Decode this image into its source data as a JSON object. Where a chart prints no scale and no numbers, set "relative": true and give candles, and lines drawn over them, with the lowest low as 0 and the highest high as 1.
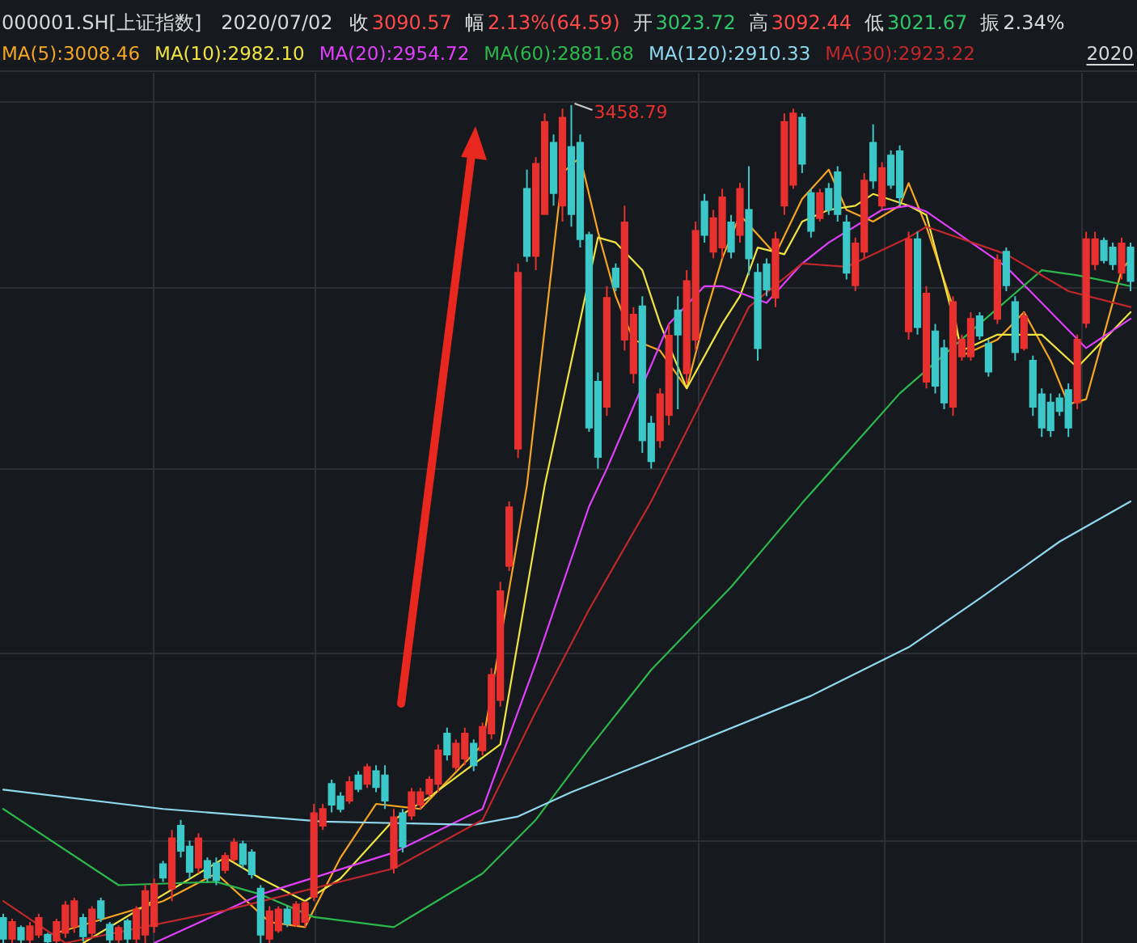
{
  "chart_data": {
    "type": "candlestick",
    "relative": true,
    "title": "000001.SH[上证指数]",
    "subtitle": "2020/07/02",
    "legend": "top left",
    "grid": true,
    "annotations": [
      "收",
      "3090.57",
      "幅",
      "2.13%(64.59)",
      "开",
      "3023.72",
      "高",
      "3092.44",
      "低",
      "3021.67",
      "振",
      "2.34%",
      "3458.79",
      "2020"
    ],
    "categories": [
      null,
      null,
      null,
      null,
      null,
      null,
      null,
      null,
      null,
      null,
      null,
      null,
      null,
      null,
      null,
      null,
      null,
      null,
      null,
      null,
      null,
      null,
      null,
      null,
      null,
      null,
      null,
      null,
      null,
      null,
      null,
      null,
      null,
      null,
      null,
      null,
      null,
      null,
      null,
      null,
      null,
      null,
      null,
      null,
      null,
      null,
      null,
      null,
      null,
      null,
      null,
      null,
      null,
      null,
      null,
      null,
      null,
      null,
      null,
      null,
      null,
      null,
      null,
      null,
      null,
      null,
      null,
      null,
      null,
      null,
      null,
      null,
      null,
      null,
      null,
      null,
      null,
      null,
      null,
      null,
      null,
      null,
      null,
      null,
      null,
      null,
      null,
      null,
      null,
      null,
      null,
      null,
      null,
      null,
      null,
      null,
      null,
      null,
      null,
      null,
      null,
      null,
      null,
      null,
      null,
      null,
      null,
      null,
      null,
      null,
      null,
      null,
      null,
      null,
      null,
      null,
      null,
      null,
      null,
      null,
      null,
      null,
      null,
      null,
      null,
      null,
      null,
      null
    ],
    "ohlc": [
      [
        0.03,
        0.035,
        0,
        0.005
      ],
      [
        0.005,
        0.029,
        0,
        0.025
      ],
      [
        0.018,
        0.021,
        0,
        0.004
      ],
      [
        0.004,
        0.025,
        0,
        0.02
      ],
      [
        0.01,
        0.035,
        0.006,
        0.03
      ],
      [
        0.01,
        0.012,
        0,
        0.002
      ],
      [
        0.003,
        0.029,
        0,
        0.025
      ],
      [
        0.012,
        0.05,
        0.006,
        0.045
      ],
      [
        0.02,
        0.054,
        0.012,
        0.05
      ],
      [
        0.03,
        0.035,
        0.002,
        0.008
      ],
      [
        0.012,
        0.044,
        0.006,
        0.04
      ],
      [
        0.05,
        0.054,
        0.025,
        0.03
      ],
      [
        0.022,
        0.025,
        0,
        0.004
      ],
      [
        0.004,
        0.021,
        0,
        0.018
      ],
      [
        0.026,
        0.029,
        0,
        0.005
      ],
      [
        0.005,
        0.044,
        0,
        0.04
      ],
      [
        0.01,
        0.069,
        0,
        0.062
      ],
      [
        0.02,
        0.077,
        0.012,
        0.07
      ],
      [
        0.094,
        0.098,
        0.073,
        0.078
      ],
      [
        0.065,
        0.135,
        0.05,
        0.125
      ],
      [
        0.14,
        0.147,
        0.102,
        0.11
      ],
      [
        0.115,
        0.122,
        0.077,
        0.085
      ],
      [
        0.09,
        0.131,
        0.083,
        0.125
      ],
      [
        0.098,
        0.102,
        0.073,
        0.078
      ],
      [
        0.095,
        0.102,
        0.069,
        0.075
      ],
      [
        0.087,
        0.108,
        0.083,
        0.104
      ],
      [
        0.1,
        0.125,
        0.097,
        0.12
      ],
      [
        0.118,
        0.122,
        0.089,
        0.094
      ],
      [
        0.108,
        0.112,
        0.077,
        0.082
      ],
      [
        0.065,
        0.069,
        0,
        0.01
      ],
      [
        0.005,
        0.044,
        0,
        0.038
      ],
      [
        0.015,
        0.044,
        0.012,
        0.04
      ],
      [
        0.04,
        0.044,
        0.019,
        0.023
      ],
      [
        0.022,
        0.05,
        0.019,
        0.046
      ],
      [
        0.025,
        0.05,
        0.019,
        0.048
      ],
      [
        0.055,
        0.166,
        0.05,
        0.155
      ],
      [
        0.14,
        0.166,
        0.135,
        0.16
      ],
      [
        0.19,
        0.195,
        0.156,
        0.165
      ],
      [
        0.175,
        0.18,
        0.156,
        0.16
      ],
      [
        0.17,
        0.199,
        0.166,
        0.192
      ],
      [
        0.2,
        0.205,
        0.18,
        0.184
      ],
      [
        0.19,
        0.214,
        0.185,
        0.21
      ],
      [
        0.205,
        0.212,
        0.18,
        0.186
      ],
      [
        0.2,
        0.212,
        0.16,
        0.17
      ],
      [
        0.09,
        0.16,
        0.083,
        0.15
      ],
      [
        0.155,
        0.16,
        0.108,
        0.115
      ],
      [
        0.152,
        0.185,
        0.147,
        0.18
      ],
      [
        0.165,
        0.185,
        0.16,
        0.18
      ],
      [
        0.178,
        0.199,
        0.174,
        0.195
      ],
      [
        0.19,
        0.237,
        0.18,
        0.23
      ],
      [
        0.25,
        0.257,
        0.218,
        0.225
      ],
      [
        0.21,
        0.243,
        0.205,
        0.238
      ],
      [
        0.22,
        0.257,
        0.212,
        0.25
      ],
      [
        0.238,
        0.243,
        0.205,
        0.212
      ],
      [
        0.23,
        0.263,
        0.224,
        0.258
      ],
      [
        0.25,
        0.328,
        0.243,
        0.32
      ],
      [
        0.29,
        0.431,
        0.282,
        0.42
      ],
      [
        0.45,
        0.527,
        0.444,
        0.52
      ],
      [
        0.59,
        0.811,
        0.579,
        0.8
      ],
      [
        0.9,
        0.923,
        0.813,
        0.82
      ],
      [
        0.82,
        0.938,
        0.803,
        0.93
      ],
      [
        0.87,
        0.99,
        0.869,
        0.98
      ],
      [
        0.955,
        0.965,
        0.88,
        0.895
      ],
      [
        0.88,
        0.996,
        0.861,
        0.985
      ],
      [
        0.95,
        1,
        0.855,
        0.87
      ],
      [
        0.955,
        0.965,
        0.83,
        0.84
      ],
      [
        0.845,
        0.849,
        0.61,
        0.615
      ],
      [
        0.67,
        0.681,
        0.566,
        0.58
      ],
      [
        0.64,
        0.784,
        0.629,
        0.77
      ],
      [
        0.805,
        0.811,
        0.778,
        0.783
      ],
      [
        0.72,
        0.88,
        0.707,
        0.86
      ],
      [
        0.68,
        0.759,
        0.668,
        0.75
      ],
      [
        0.76,
        0.772,
        0.585,
        0.6
      ],
      [
        0.62,
        0.629,
        0.566,
        0.575
      ],
      [
        0.6,
        0.662,
        0.591,
        0.655
      ],
      [
        0.63,
        0.739,
        0.618,
        0.725
      ],
      [
        0.755,
        0.772,
        0.637,
        0.726
      ],
      [
        0.68,
        0.803,
        0.668,
        0.79
      ],
      [
        0.72,
        0.861,
        0.707,
        0.85
      ],
      [
        0.885,
        0.894,
        0.836,
        0.845
      ],
      [
        0.825,
        0.875,
        0.817,
        0.865
      ],
      [
        0.83,
        0.9,
        0.817,
        0.89
      ],
      [
        0.86,
        0.869,
        0.817,
        0.825
      ],
      [
        0.845,
        0.907,
        0.836,
        0.9
      ],
      [
        0.875,
        0.927,
        0.797,
        0.817
      ],
      [
        0.8,
        0.811,
        0.695,
        0.71
      ],
      [
        0.81,
        0.817,
        0.772,
        0.78
      ],
      [
        0.77,
        0.849,
        0.759,
        0.84
      ],
      [
        0.88,
        0.99,
        0.869,
        0.98
      ],
      [
        0.905,
        0.996,
        0.9,
        0.99
      ],
      [
        0.985,
        0.99,
        0.919,
        0.93
      ],
      [
        0.895,
        0.9,
        0.842,
        0.85
      ],
      [
        0.865,
        0.9,
        0.861,
        0.895
      ],
      [
        0.9,
        0.907,
        0.869,
        0.875
      ],
      [
        0.92,
        0.927,
        0.861,
        0.87
      ],
      [
        0.86,
        0.869,
        0.792,
        0.8
      ],
      [
        0.785,
        0.842,
        0.778,
        0.835
      ],
      [
        0.825,
        0.919,
        0.817,
        0.91
      ],
      [
        0.955,
        0.977,
        0.9,
        0.91
      ],
      [
        0.88,
        0.932,
        0.875,
        0.925
      ],
      [
        0.94,
        0.946,
        0.9,
        0.905
      ],
      [
        0.945,
        0.952,
        0.88,
        0.89
      ],
      [
        0.73,
        0.849,
        0.72,
        0.84
      ],
      [
        0.84,
        0.849,
        0.726,
        0.735
      ],
      [
        0.67,
        0.784,
        0.662,
        0.775
      ],
      [
        0.73,
        0.739,
        0.656,
        0.665
      ],
      [
        0.71,
        0.72,
        0.637,
        0.645
      ],
      [
        0.64,
        0.772,
        0.629,
        0.765
      ],
      [
        0.7,
        0.726,
        0.695,
        0.72
      ],
      [
        0.7,
        0.753,
        0.695,
        0.745
      ],
      [
        0.748,
        0.753,
        0.72,
        0.725
      ],
      [
        0.715,
        0.72,
        0.676,
        0.682
      ],
      [
        0.745,
        0.822,
        0.739,
        0.815
      ],
      [
        0.825,
        0.83,
        0.778,
        0.785
      ],
      [
        0.765,
        0.772,
        0.695,
        0.705
      ],
      [
        0.71,
        0.753,
        0.707,
        0.748
      ],
      [
        0.695,
        0.701,
        0.629,
        0.64
      ],
      [
        0.655,
        0.662,
        0.604,
        0.615
      ],
      [
        0.645,
        0.656,
        0.604,
        0.612
      ],
      [
        0.65,
        0.656,
        0.629,
        0.635
      ],
      [
        0.66,
        0.668,
        0.604,
        0.615
      ],
      [
        0.645,
        0.726,
        0.637,
        0.72
      ],
      [
        0.74,
        0.849,
        0.734,
        0.84
      ],
      [
        0.81,
        0.849,
        0.803,
        0.84
      ],
      [
        0.838,
        0.842,
        0.811,
        0.815
      ],
      [
        0.83,
        0.836,
        0.803,
        0.81
      ],
      [
        0.8,
        0.842,
        0.792,
        0.835
      ],
      [
        0.83,
        0.836,
        0.778,
        0.79
      ]
    ],
    "colors": [
      "#3cc8c8",
      "#e8312f",
      "#3cc8c8",
      "#e8312f",
      "#e8312f",
      "#3cc8c8",
      "#e8312f",
      "#e8312f",
      "#e8312f",
      "#3cc8c8",
      "#e8312f",
      "#3cc8c8",
      "#3cc8c8",
      "#e8312f",
      "#3cc8c8",
      "#e8312f",
      "#e8312f",
      "#e8312f",
      "#3cc8c8",
      "#e8312f",
      "#3cc8c8",
      "#3cc8c8",
      "#e8312f",
      "#3cc8c8",
      "#3cc8c8",
      "#e8312f",
      "#e8312f",
      "#3cc8c8",
      "#3cc8c8",
      "#3cc8c8",
      "#e8312f",
      "#e8312f",
      "#3cc8c8",
      "#e8312f",
      "#e8312f",
      "#e8312f",
      "#e8312f",
      "#3cc8c8",
      "#3cc8c8",
      "#e8312f",
      "#3cc8c8",
      "#e8312f",
      "#3cc8c8",
      "#3cc8c8",
      "#e8312f",
      "#3cc8c8",
      "#e8312f",
      "#e8312f",
      "#e8312f",
      "#e8312f",
      "#3cc8c8",
      "#e8312f",
      "#e8312f",
      "#3cc8c8",
      "#e8312f",
      "#e8312f",
      "#e8312f",
      "#e8312f",
      "#e8312f",
      "#3cc8c8",
      "#e8312f",
      "#e8312f",
      "#3cc8c8",
      "#e8312f",
      "#3cc8c8",
      "#3cc8c8",
      "#3cc8c8",
      "#3cc8c8",
      "#e8312f",
      "#3cc8c8",
      "#e8312f",
      "#e8312f",
      "#3cc8c8",
      "#3cc8c8",
      "#e8312f",
      "#e8312f",
      "#3cc8c8",
      "#e8312f",
      "#e8312f",
      "#3cc8c8",
      "#e8312f",
      "#e8312f",
      "#3cc8c8",
      "#e8312f",
      "#3cc8c8",
      "#3cc8c8",
      "#3cc8c8",
      "#e8312f",
      "#e8312f",
      "#e8312f",
      "#3cc8c8",
      "#3cc8c8",
      "#e8312f",
      "#3cc8c8",
      "#3cc8c8",
      "#3cc8c8",
      "#e8312f",
      "#e8312f",
      "#3cc8c8",
      "#e8312f",
      "#3cc8c8",
      "#3cc8c8",
      "#e8312f",
      "#3cc8c8",
      "#e8312f",
      "#3cc8c8",
      "#3cc8c8",
      "#e8312f",
      "#e8312f",
      "#e8312f",
      "#3cc8c8",
      "#3cc8c8",
      "#e8312f",
      "#3cc8c8",
      "#3cc8c8",
      "#e8312f",
      "#3cc8c8",
      "#3cc8c8",
      "#3cc8c8",
      "#3cc8c8",
      "#3cc8c8",
      "#e8312f",
      "#e8312f",
      "#e8312f",
      "#3cc8c8",
      "#3cc8c8",
      "#e8312f",
      "#3cc8c8"
    ],
    "series": [
      {
        "name": "MA(5):3008.46",
        "type": "line",
        "color": "#f5a623",
        "values": [
          null,
          null,
          null,
          null,
          null,
          null,
          0.012,
          null,
          null,
          null,
          null,
          null,
          null,
          null,
          null,
          null,
          null,
          null,
          0.05,
          null,
          null,
          null,
          null,
          null,
          0.083,
          null,
          null,
          null,
          null,
          null,
          0.025,
          null,
          null,
          null,
          0.019,
          null,
          null,
          null,
          0.102,
          null,
          null,
          null,
          0.166,
          null,
          null,
          null,
          null,
          0.16,
          null,
          null,
          null,
          null,
          null,
          null,
          0.237,
          null,
          null,
          null,
          null,
          0.546,
          null,
          null,
          null,
          0.919,
          null,
          0.938,
          null,
          0.849,
          null,
          0.772,
          null,
          0.72,
          null,
          null,
          0.707,
          null,
          null,
          0.662,
          null,
          0.745,
          null,
          0.817,
          null,
          0.869,
          null,
          null,
          null,
          0.822,
          null,
          null,
          0.888,
          null,
          null,
          0.923,
          null,
          0.875,
          null,
          null,
          0.861,
          null,
          null,
          0.88,
          0.907,
          null,
          0.855,
          null,
          null,
          0.759,
          0.701,
          null,
          null,
          null,
          0.72,
          null,
          null,
          0.753,
          null,
          null,
          0.695,
          null,
          0.643,
          null,
          0.649,
          null,
          null,
          null,
          0.803,
          0.817
        ]
      },
      {
        "name": "MA(10):2982.10",
        "type": "line",
        "color": "#f0e442",
        "values": [
          null,
          null,
          null,
          null,
          null,
          null,
          null,
          null,
          null,
          0,
          null,
          null,
          null,
          null,
          null,
          null,
          null,
          null,
          null,
          null,
          null,
          null,
          null,
          null,
          null,
          0.102,
          null,
          null,
          null,
          0.077,
          null,
          null,
          null,
          null,
          0.05,
          null,
          null,
          null,
          0.077,
          null,
          null,
          null,
          null,
          null,
          0.147,
          null,
          null,
          null,
          0.174,
          null,
          null,
          null,
          null,
          null,
          null,
          null,
          0.237,
          null,
          null,
          null,
          null,
          0.546,
          null,
          null,
          null,
          null,
          null,
          0.842,
          null,
          0.836,
          null,
          null,
          0.803,
          null,
          0.739,
          null,
          null,
          0.662,
          null,
          null,
          null,
          0.739,
          null,
          0.772,
          null,
          0.83,
          null,
          null,
          0.822,
          null,
          0.861,
          null,
          null,
          0.875,
          null,
          null,
          0.88,
          null,
          0.894,
          null,
          null,
          null,
          0.88,
          null,
          0.869,
          null,
          null,
          null,
          0.707,
          null,
          null,
          null,
          0.726,
          null,
          null,
          null,
          null,
          0.726,
          null,
          null,
          null,
          0.687,
          null,
          null,
          null,
          null,
          null,
          0.753
        ]
      },
      {
        "name": "MA(20):2954.72",
        "type": "line",
        "color": "#e040fb",
        "values": [
          null,
          null,
          null,
          null,
          null,
          null,
          null,
          null,
          null,
          null,
          null,
          null,
          null,
          null,
          null,
          null,
          null,
          0,
          null,
          null,
          null,
          null,
          null,
          null,
          null,
          null,
          null,
          null,
          null,
          0.058,
          null,
          null,
          null,
          null,
          null,
          null,
          null,
          null,
          null,
          null,
          null,
          null,
          null,
          null,
          0.108,
          null,
          null,
          null,
          null,
          null,
          null,
          null,
          null,
          null,
          0.16,
          null,
          null,
          null,
          null,
          null,
          0.334,
          null,
          null,
          null,
          null,
          null,
          0.521,
          null,
          0.566,
          null,
          null,
          null,
          null,
          null,
          null,
          0.739,
          null,
          null,
          null,
          0.784,
          null,
          0.784,
          null,
          null,
          null,
          null,
          0.764,
          null,
          null,
          null,
          0.811,
          null,
          null,
          0.836,
          null,
          null,
          null,
          null,
          null,
          0.875,
          null,
          null,
          0.88,
          null,
          0.873,
          null,
          null,
          null,
          null,
          null,
          null,
          null,
          null,
          0.807,
          null,
          null,
          null,
          null,
          null,
          null,
          null,
          null,
          0.71,
          null,
          null,
          null,
          null,
          0.745
        ]
      },
      {
        "name": "MA(60):2881.68",
        "type": "line",
        "color": "#2db84d",
        "values": [
          0.16,
          null,
          null,
          null,
          null,
          null,
          null,
          null,
          null,
          null,
          null,
          null,
          null,
          0.069,
          null,
          null,
          null,
          null,
          null,
          null,
          null,
          null,
          null,
          null,
          0.073,
          null,
          null,
          null,
          null,
          0.058,
          null,
          null,
          null,
          null,
          null,
          0.031,
          null,
          null,
          null,
          null,
          null,
          null,
          null,
          null,
          0.019,
          null,
          null,
          null,
          null,
          null,
          null,
          null,
          null,
          null,
          0.083,
          null,
          null,
          null,
          null,
          null,
          0.147,
          null,
          null,
          null,
          null,
          null,
          0.232,
          null,
          null,
          null,
          null,
          null,
          null,
          0.326,
          null,
          null,
          null,
          null,
          null,
          null,
          null,
          null,
          0.425,
          null,
          null,
          null,
          null,
          null,
          null,
          null,
          0.525,
          null,
          null,
          null,
          null,
          null,
          null,
          null,
          null,
          null,
          null,
          0.656,
          null,
          null,
          null,
          null,
          null,
          null,
          null,
          null,
          0.739,
          null,
          null,
          null,
          null,
          null,
          null,
          0.803,
          null,
          null,
          null,
          0.797,
          null,
          null,
          null,
          null,
          null,
          0.784
        ]
      },
      {
        "name": "MA(120):2910.33",
        "type": "line",
        "color": "#8fd8ef",
        "values": [
          0.183,
          null,
          null,
          null,
          null,
          null,
          null,
          null,
          null,
          null,
          null,
          null,
          null,
          null,
          null,
          null,
          null,
          null,
          0.16,
          null,
          null,
          null,
          null,
          null,
          null,
          null,
          null,
          null,
          null,
          null,
          null,
          null,
          null,
          null,
          null,
          null,
          0.145,
          null,
          null,
          null,
          null,
          null,
          null,
          null,
          null,
          null,
          null,
          null,
          null,
          null,
          null,
          null,
          null,
          0.141,
          null,
          null,
          null,
          null,
          0.151,
          null,
          null,
          null,
          null,
          null,
          0.18,
          null,
          null,
          null,
          null,
          null,
          null,
          null,
          null,
          0.218,
          null,
          null,
          null,
          null,
          null,
          null,
          null,
          null,
          null,
          null,
          null,
          null,
          null,
          null,
          null,
          null,
          null,
          0.295,
          null,
          null,
          null,
          null,
          null,
          null,
          null,
          null,
          null,
          null,
          0.353,
          null,
          null,
          null,
          null,
          null,
          null,
          null,
          0.411,
          null,
          null,
          null,
          null,
          null,
          null,
          null,
          null,
          0.479,
          null,
          null,
          null,
          null,
          null,
          null,
          null,
          0.527
        ]
      },
      {
        "name": "MA(30):2923.22",
        "type": "line",
        "color": "#c0282c",
        "values": [
          0.05,
          null,
          null,
          null,
          null,
          null,
          null,
          0,
          null,
          null,
          null,
          null,
          null,
          null,
          null,
          null,
          null,
          null,
          null,
          null,
          null,
          null,
          null,
          null,
          null,
          0.039,
          null,
          null,
          null,
          null,
          null,
          null,
          null,
          null,
          null,
          null,
          null,
          null,
          null,
          null,
          null,
          null,
          null,
          null,
          0.089,
          null,
          null,
          null,
          null,
          null,
          null,
          null,
          null,
          null,
          0.147,
          null,
          null,
          null,
          null,
          null,
          0.276,
          null,
          null,
          null,
          null,
          null,
          0.398,
          null,
          null,
          null,
          null,
          null,
          null,
          0.527,
          null,
          null,
          null,
          null,
          null,
          null,
          null,
          null,
          null,
          null,
          0.759,
          null,
          null,
          null,
          null,
          null,
          0.811,
          null,
          null,
          null,
          null,
          0.807,
          null,
          null,
          null,
          null,
          null,
          null,
          0.842,
          null,
          0.855,
          null,
          null,
          null,
          null,
          null,
          null,
          null,
          null,
          0.822,
          null,
          null,
          null,
          null,
          null,
          null,
          0.778,
          null,
          null,
          null,
          null,
          null,
          null,
          0.759
        ]
      }
    ]
  }
}
